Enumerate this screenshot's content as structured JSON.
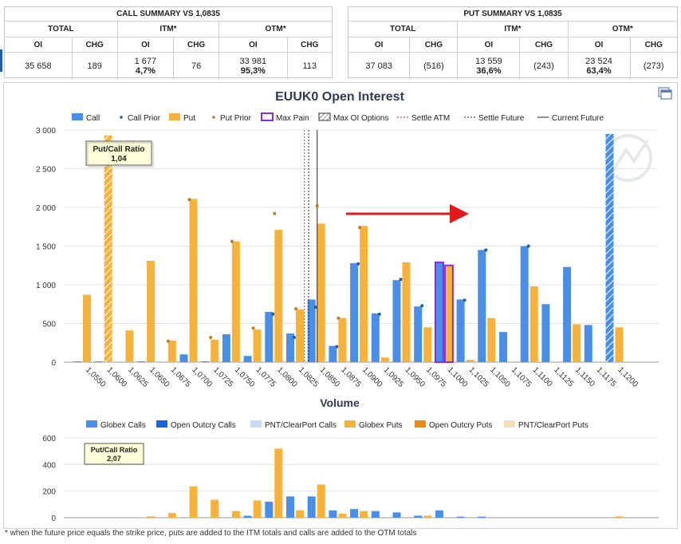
{
  "call_summary": {
    "title": "CALL SUMMARY VS 1,0835",
    "groups": [
      "TOTAL",
      "ITM*",
      "OTM*"
    ],
    "cols": [
      "OI",
      "CHG",
      "OI",
      "CHG",
      "OI",
      "CHG"
    ],
    "total_oi": "35 658",
    "total_chg": "189",
    "itm_oi": "1 677",
    "itm_pct": "4,7%",
    "itm_chg": "76",
    "otm_oi": "33 981",
    "otm_pct": "95,3%",
    "otm_chg": "113"
  },
  "put_summary": {
    "title": "PUT SUMMARY VS 1,0835",
    "groups": [
      "TOTAL",
      "ITM*",
      "OTM*"
    ],
    "cols": [
      "OI",
      "CHG",
      "OI",
      "CHG",
      "OI",
      "CHG"
    ],
    "total_oi": "37 083",
    "total_chg": "(516)",
    "itm_oi": "13 559",
    "itm_pct": "36,6%",
    "itm_chg": "(243)",
    "otm_oi": "23 524",
    "otm_pct": "63,4%",
    "otm_chg": "(273)"
  },
  "footnote": "* when the future price equals the strike price, puts are added to the ITM totals and calls are added to the OTM totals",
  "colors": {
    "call": "#4a8fe7",
    "put": "#f7b23c",
    "call_prior": "#1f5fa8",
    "put_prior": "#c8781e",
    "max_pain": "#8a2be2",
    "settle_atm": "#d42a2a",
    "arrow": "#e01b1b",
    "oo_calls": "#1565d8",
    "pnt_calls": "#c7d9f3",
    "oo_puts": "#ef8c0f",
    "pnt_puts": "#f7dcb8"
  },
  "chart_data": [
    {
      "type": "bar",
      "title": "EUUK0 Open Interest",
      "legend": [
        "Call",
        "Call Prior",
        "Put",
        "Put Prior",
        "Max Pain",
        "Max OI Options",
        "Settle ATM",
        "Settle Future",
        "Current Future"
      ],
      "legend_position": "top",
      "annotation": {
        "title": "Put/Call Ratio",
        "value": "1,04"
      },
      "categories": [
        "1,0550",
        "1,0600",
        "1,0625",
        "1,0650",
        "1,0675",
        "1,0700",
        "1,0725",
        "1,0750",
        "1,0775",
        "1,0800",
        "1,0825",
        "1,0850",
        "1,0875",
        "1,0900",
        "1,0925",
        "1,0950",
        "1,0975",
        "1,1000",
        "1,1025",
        "1,1050",
        "1,1075",
        "1,1100",
        "1,1125",
        "1,1150",
        "1,1175",
        "1,1200"
      ],
      "yticks": [
        "3 000",
        "2 500",
        "2 000",
        "1 500",
        "1 000",
        "500",
        "0"
      ],
      "ylim": [
        0,
        3000
      ],
      "series": [
        {
          "name": "Call",
          "values": [
            10,
            10,
            0,
            10,
            0,
            100,
            10,
            360,
            80,
            650,
            370,
            810,
            210,
            1280,
            630,
            1060,
            720,
            1290,
            810,
            1450,
            390,
            1500,
            750,
            1230,
            480,
            2950
          ]
        },
        {
          "name": "Call Prior",
          "values": [
            null,
            null,
            null,
            null,
            null,
            null,
            null,
            null,
            null,
            620,
            320,
            710,
            200,
            1270,
            620,
            1070,
            730,
            null,
            800,
            1450,
            null,
            1500,
            null,
            null,
            null,
            null
          ]
        },
        {
          "name": "Put",
          "values": [
            870,
            2930,
            410,
            1310,
            280,
            2110,
            290,
            1560,
            420,
            1710,
            680,
            1790,
            570,
            1760,
            60,
            1290,
            450,
            1250,
            30,
            570,
            0,
            980,
            0,
            490,
            0,
            450
          ]
        },
        {
          "name": "Put Prior",
          "values": [
            null,
            null,
            null,
            null,
            270,
            2100,
            320,
            1560,
            440,
            1920,
            690,
            2020,
            570,
            1740,
            null,
            null,
            null,
            null,
            null,
            null,
            null,
            null,
            null,
            null,
            null,
            null
          ]
        }
      ],
      "max_pain": "1,1000",
      "max_oi_options": {
        "put": "1,0600",
        "call": "1,1200"
      },
      "settle_atm": 1.0836,
      "settle_future": 1.0841,
      "current_future": 1.0851
    },
    {
      "type": "bar",
      "title": "Volume",
      "legend": [
        "Globex Calls",
        "Open Outcry Calls",
        "PNT/ClearPort Calls",
        "Globex Puts",
        "Open Outcry Puts",
        "PNT/ClearPort Puts"
      ],
      "legend_position": "top",
      "annotation": {
        "title": "Put/Call Ratio",
        "value": "2,07"
      },
      "yticks": [
        "600",
        "400",
        "200",
        "0"
      ],
      "ylim": [
        0,
        600
      ],
      "series": [
        {
          "name": "Globex Calls",
          "values": [
            0,
            0,
            0,
            0,
            0,
            0,
            0,
            0,
            15,
            120,
            160,
            160,
            55,
            65,
            50,
            40,
            15,
            55,
            8,
            8,
            0,
            0,
            0,
            0,
            0,
            0
          ]
        },
        {
          "name": "Globex Puts",
          "values": [
            0,
            0,
            0,
            10,
            35,
            235,
            135,
            50,
            130,
            520,
            55,
            250,
            30,
            50,
            0,
            0,
            15,
            0,
            0,
            0,
            0,
            0,
            0,
            0,
            0,
            10
          ]
        }
      ]
    }
  ]
}
